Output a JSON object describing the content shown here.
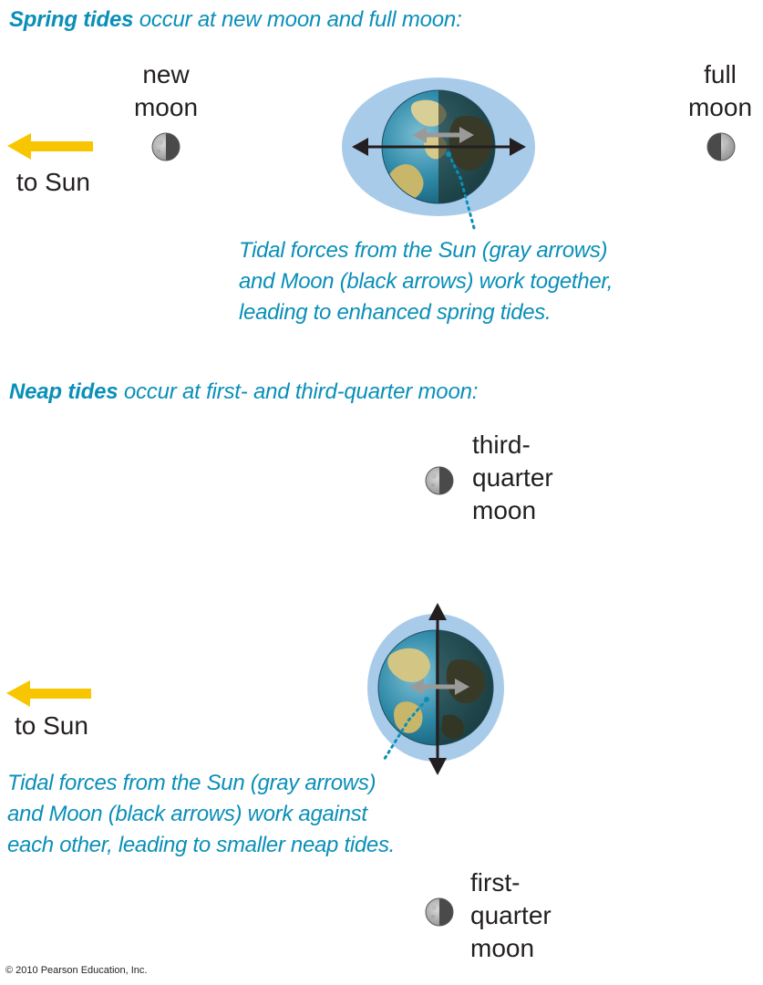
{
  "spring": {
    "title_bold": "Spring tides",
    "title_rest": " occur at new moon and full moon:",
    "new_moon": [
      "new",
      "moon"
    ],
    "full_moon": [
      "full",
      "moon"
    ],
    "to_sun": "to Sun",
    "caption": [
      "Tidal forces from the Sun (gray arrows)",
      "and Moon (black arrows) work together,",
      "leading to enhanced spring tides."
    ]
  },
  "neap": {
    "title_bold": "Neap tides",
    "title_rest": " occur at first- and third-quarter moon:",
    "third_quarter": [
      "third-",
      "quarter",
      "moon"
    ],
    "first_quarter": [
      "first-",
      "quarter",
      "moon"
    ],
    "to_sun": "to Sun",
    "caption": [
      "Tidal forces from the Sun (gray arrows)",
      "and Moon (black arrows) work against",
      "each other, leading to smaller neap tides."
    ]
  },
  "copyright": "© 2010 Pearson Education, Inc.",
  "colors": {
    "accent_blue": "#0a8fb8",
    "sun_arrow": "#f7c600",
    "tidal_bulge": "#a9cbea",
    "moon_arrow": "#231f20",
    "sun_force_arrow": "#9a9a9a"
  }
}
